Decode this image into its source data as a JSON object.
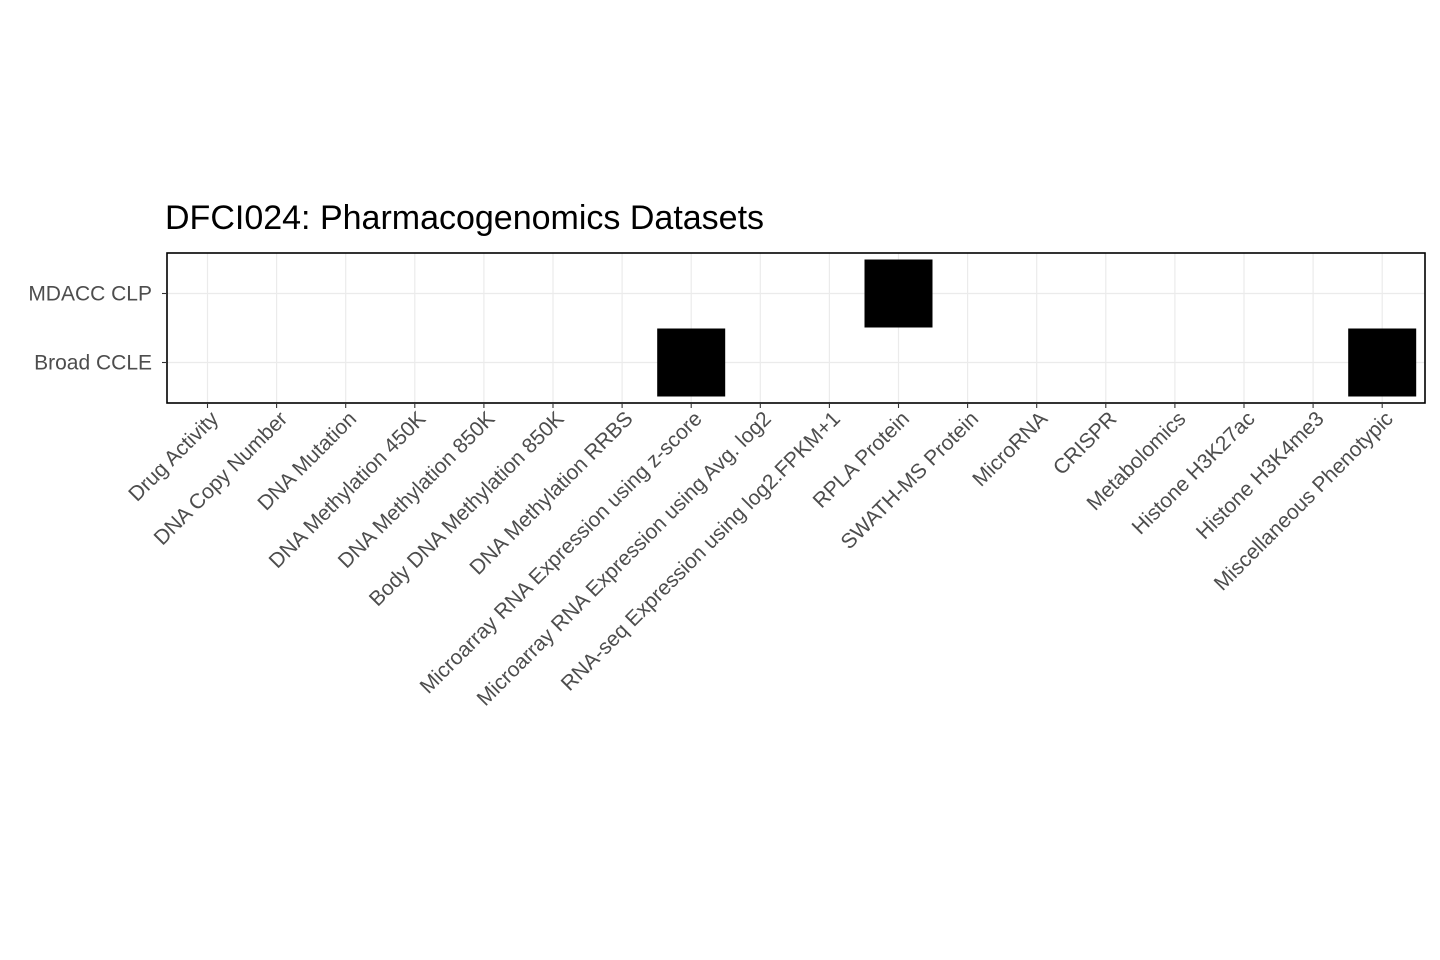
{
  "chart_data": {
    "type": "heatmap",
    "title": "DFCI024: Pharmacogenomics Datasets",
    "xlabel": "",
    "ylabel": "",
    "x_categories": [
      "Drug Activity",
      "DNA Copy Number",
      "DNA Mutation",
      "DNA Methylation 450K",
      "DNA Methylation 850K",
      "Body DNA Methylation 850K",
      "DNA Methylation RRBS",
      "Microarray RNA Expression using z-score",
      "Microarray RNA Expression using Avg. log2",
      "RNA-seq Expression using log2.FPKM+1",
      "RPLA Protein",
      "SWATH-MS Protein",
      "MicroRNA",
      "CRISPR",
      "Metabolomics",
      "Histone H3K27ac",
      "Histone H3K4me3",
      "Miscellaneous Phenotypic"
    ],
    "y_categories": [
      "MDACC CLP",
      "Broad CCLE"
    ],
    "cells": [
      {
        "x": "RPLA Protein",
        "y": "MDACC CLP",
        "present": true
      },
      {
        "x": "Microarray RNA Expression using z-score",
        "y": "Broad CCLE",
        "present": true
      },
      {
        "x": "Miscellaneous Phenotypic",
        "y": "Broad CCLE",
        "present": true
      }
    ],
    "fill_color": "#000000",
    "grid": true,
    "legend": "none"
  }
}
